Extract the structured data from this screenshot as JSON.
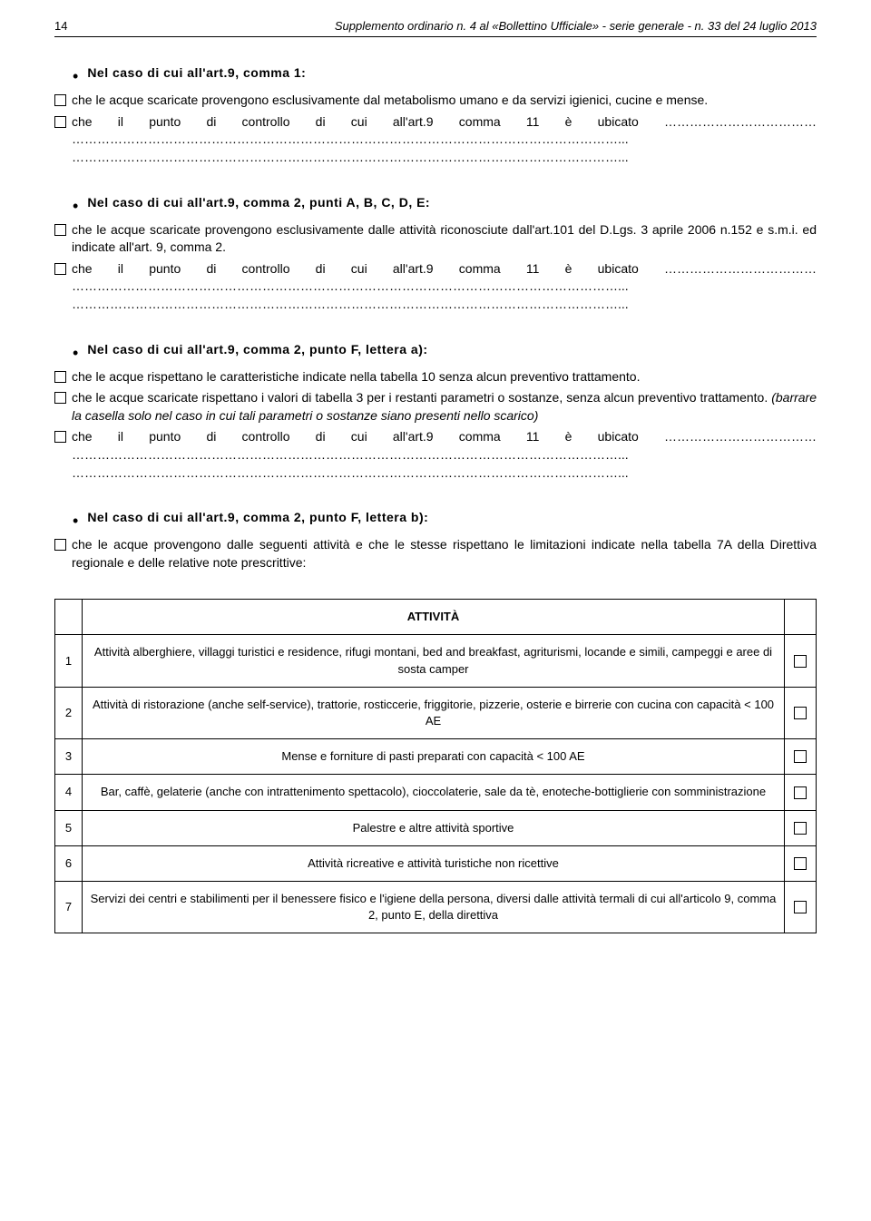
{
  "header": {
    "page_num": "14",
    "title": "Supplemento ordinario n. 4 al «Bollettino Ufficiale» - serie generale - n. 33 del 24 luglio 2013"
  },
  "section1": {
    "heading": "Nel caso di cui all'art.9, comma 1:",
    "item1": "che le acque scaricate provengono esclusivamente dal metabolismo umano e da servizi igienici, cucine e mense.",
    "item2_pre": "che il punto di controllo di cui all'art.9 comma 11 è ubicato ……………………………… …………………………………………………………………………………………………………………... …………………………………………………………………………………………………………………..."
  },
  "section2": {
    "heading": "Nel caso di cui all'art.9, comma 2, punti A, B, C, D, E:",
    "item1": "che le acque scaricate provengono esclusivamente dalle attività riconosciute dall'art.101 del D.Lgs. 3 aprile 2006 n.152 e s.m.i. ed indicate all'art. 9, comma 2.",
    "item2_pre": "che il punto di controllo di cui all'art.9 comma 11 è ubicato ……………………………… …………………………………………………………………………………………………………………... …………………………………………………………………………………………………………………..."
  },
  "section3": {
    "heading": "Nel caso di cui all'art.9, comma 2, punto F, lettera a):",
    "item1": "che le acque rispettano le caratteristiche indicate nella tabella 10 senza alcun preventivo trattamento.",
    "item2_pre": "che le acque scaricate rispettano i valori di tabella 3 per i restanti parametri o sostanze, senza alcun preventivo trattamento. ",
    "item2_italic": "(barrare la casella solo nel caso in cui tali parametri o sostanze siano presenti nello scarico)",
    "item3_pre": "che il punto di controllo di cui all'art.9 comma 11 è ubicato ……………………………… …………………………………………………………………………………………………………………... …………………………………………………………………………………………………………………..."
  },
  "section4": {
    "heading": "Nel caso di cui all'art.9, comma 2, punto F, lettera b):",
    "intro": "che le acque provengono dalle seguenti attività e che le stesse rispettano le limitazioni indicate nella tabella 7A della Direttiva regionale e delle relative note prescrittive:"
  },
  "table": {
    "header": "ATTIVITÀ",
    "rows": [
      {
        "num": "1",
        "text": "Attività alberghiere, villaggi turistici e residence, rifugi montani, bed and breakfast, agriturismi, locande e simili, campeggi e aree di sosta camper"
      },
      {
        "num": "2",
        "text": "Attività di ristorazione (anche self-service), trattorie, rosticcerie, friggitorie, pizzerie, osterie e birrerie con cucina con capacità < 100 AE"
      },
      {
        "num": "3",
        "text": "Mense e forniture di pasti preparati con capacità < 100 AE"
      },
      {
        "num": "4",
        "text": "Bar, caffè, gelaterie (anche con intrattenimento spettacolo), cioccolaterie, sale da tè, enoteche-bottiglierie con somministrazione"
      },
      {
        "num": "5",
        "text": "Palestre e altre attività sportive"
      },
      {
        "num": "6",
        "text": "Attività ricreative e attività turistiche non ricettive"
      },
      {
        "num": "7",
        "text": "Servizi dei centri e stabilimenti per il benessere fisico e l'igiene della persona, diversi dalle attività termali di cui all'articolo 9, comma 2, punto E, della direttiva"
      }
    ]
  }
}
